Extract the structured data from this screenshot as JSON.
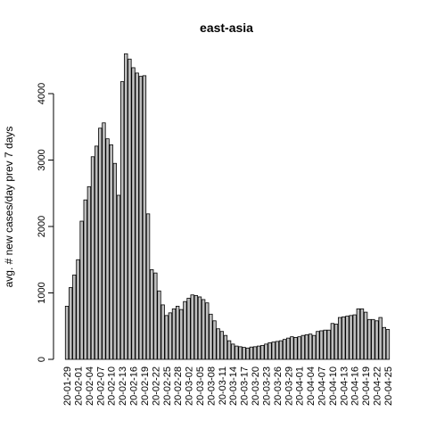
{
  "chart_data": {
    "type": "bar",
    "title": "east-asia",
    "xlabel": "",
    "ylabel": "avg. # new cases/day prev  7  days",
    "ylim": [
      0,
      4700
    ],
    "yticks": [
      0,
      1000,
      2000,
      3000,
      4000
    ],
    "grid": false,
    "categories": [
      "20-01-29",
      "20-01-30",
      "20-01-31",
      "20-02-01",
      "20-02-02",
      "20-02-03",
      "20-02-04",
      "20-02-05",
      "20-02-06",
      "20-02-07",
      "20-02-08",
      "20-02-09",
      "20-02-10",
      "20-02-11",
      "20-02-12",
      "20-02-13",
      "20-02-14",
      "20-02-15",
      "20-02-16",
      "20-02-17",
      "20-02-18",
      "20-02-19",
      "20-02-20",
      "20-02-21",
      "20-02-22",
      "20-02-23",
      "20-02-24",
      "20-02-25",
      "20-02-26",
      "20-02-27",
      "20-02-28",
      "20-02-29",
      "20-03-01",
      "20-03-02",
      "20-03-03",
      "20-03-04",
      "20-03-05",
      "20-03-06",
      "20-03-07",
      "20-03-08",
      "20-03-09",
      "20-03-10",
      "20-03-11",
      "20-03-12",
      "20-03-13",
      "20-03-14",
      "20-03-15",
      "20-03-16",
      "20-03-17",
      "20-03-18",
      "20-03-19",
      "20-03-20",
      "20-03-21",
      "20-03-22",
      "20-03-23",
      "20-03-24",
      "20-03-25",
      "20-03-26",
      "20-03-27",
      "20-03-28",
      "20-03-29",
      "20-03-30",
      "20-03-31",
      "20-04-01",
      "20-04-02",
      "20-04-03",
      "20-04-04",
      "20-04-05",
      "20-04-06",
      "20-04-07",
      "20-04-08",
      "20-04-09",
      "20-04-10",
      "20-04-11",
      "20-04-12",
      "20-04-13",
      "20-04-14",
      "20-04-15",
      "20-04-16",
      "20-04-17",
      "20-04-18",
      "20-04-19",
      "20-04-20",
      "20-04-21",
      "20-04-22",
      "20-04-23",
      "20-04-24",
      "20-04-25"
    ],
    "values": [
      800,
      1080,
      1270,
      1500,
      2080,
      2400,
      2600,
      3050,
      3210,
      3480,
      3560,
      3320,
      3230,
      2950,
      2470,
      4180,
      4600,
      4520,
      4390,
      4310,
      4260,
      4270,
      2190,
      1350,
      1300,
      1030,
      820,
      660,
      700,
      760,
      800,
      750,
      870,
      920,
      970,
      960,
      940,
      900,
      850,
      680,
      580,
      460,
      420,
      360,
      280,
      230,
      200,
      190,
      180,
      170,
      185,
      190,
      200,
      210,
      230,
      250,
      260,
      270,
      280,
      300,
      320,
      340,
      330,
      340,
      360,
      370,
      380,
      360,
      420,
      430,
      440,
      440,
      540,
      530,
      630,
      640,
      650,
      660,
      670,
      760,
      760,
      710,
      600,
      600,
      580,
      630,
      480,
      450
    ],
    "xtick_labels": [
      "20-01-29",
      "20-02-01",
      "20-02-04",
      "20-02-07",
      "20-02-10",
      "20-02-13",
      "20-02-16",
      "20-02-19",
      "20-02-22",
      "20-02-25",
      "20-02-28",
      "20-03-02",
      "20-03-05",
      "20-03-08",
      "20-03-11",
      "20-03-14",
      "20-03-17",
      "20-03-20",
      "20-03-23",
      "20-03-26",
      "20-03-29",
      "20-04-01",
      "20-04-04",
      "20-04-07",
      "20-04-10",
      "20-04-13",
      "20-04-16",
      "20-04-19",
      "20-04-22",
      "20-04-25"
    ]
  },
  "colors": {
    "bar_fill": "#bebebe",
    "bar_stroke": "#000000"
  }
}
